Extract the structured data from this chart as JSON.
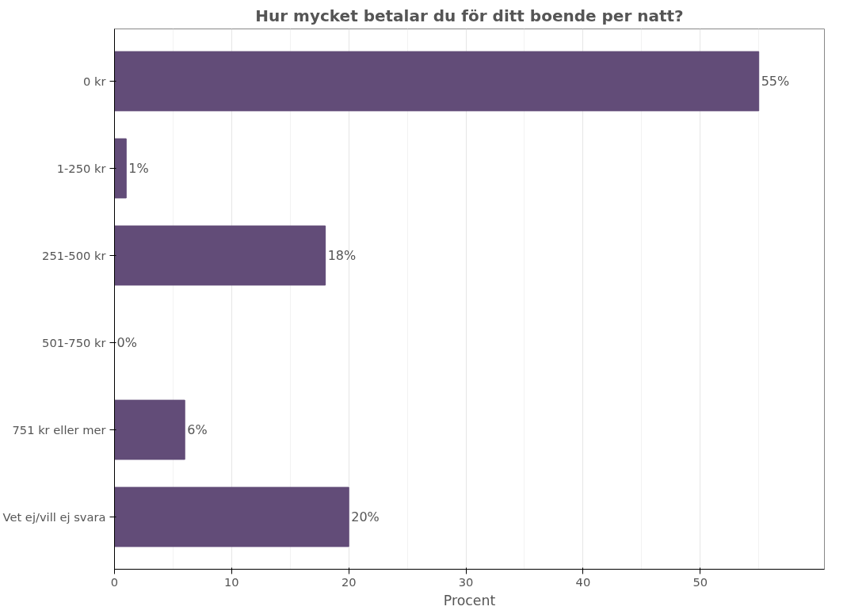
{
  "chart_data": {
    "type": "bar",
    "orientation": "horizontal",
    "title": "Hur mycket betalar du för ditt boende per natt?",
    "xlabel": "Procent",
    "categories": [
      "0 kr",
      "1-250 kr",
      "251-500 kr",
      "501-750 kr",
      "751 kr eller mer",
      "Vet ej/vill ej svara"
    ],
    "values": [
      55,
      1,
      18,
      0,
      6,
      20
    ],
    "value_labels": [
      "55%",
      "1%",
      "18%",
      "0%",
      "6%",
      "20%"
    ],
    "color": "#624c78",
    "xlim": [
      0,
      60.6
    ],
    "xticks": [
      0,
      10,
      20,
      30,
      40,
      50
    ],
    "grid": "x"
  }
}
